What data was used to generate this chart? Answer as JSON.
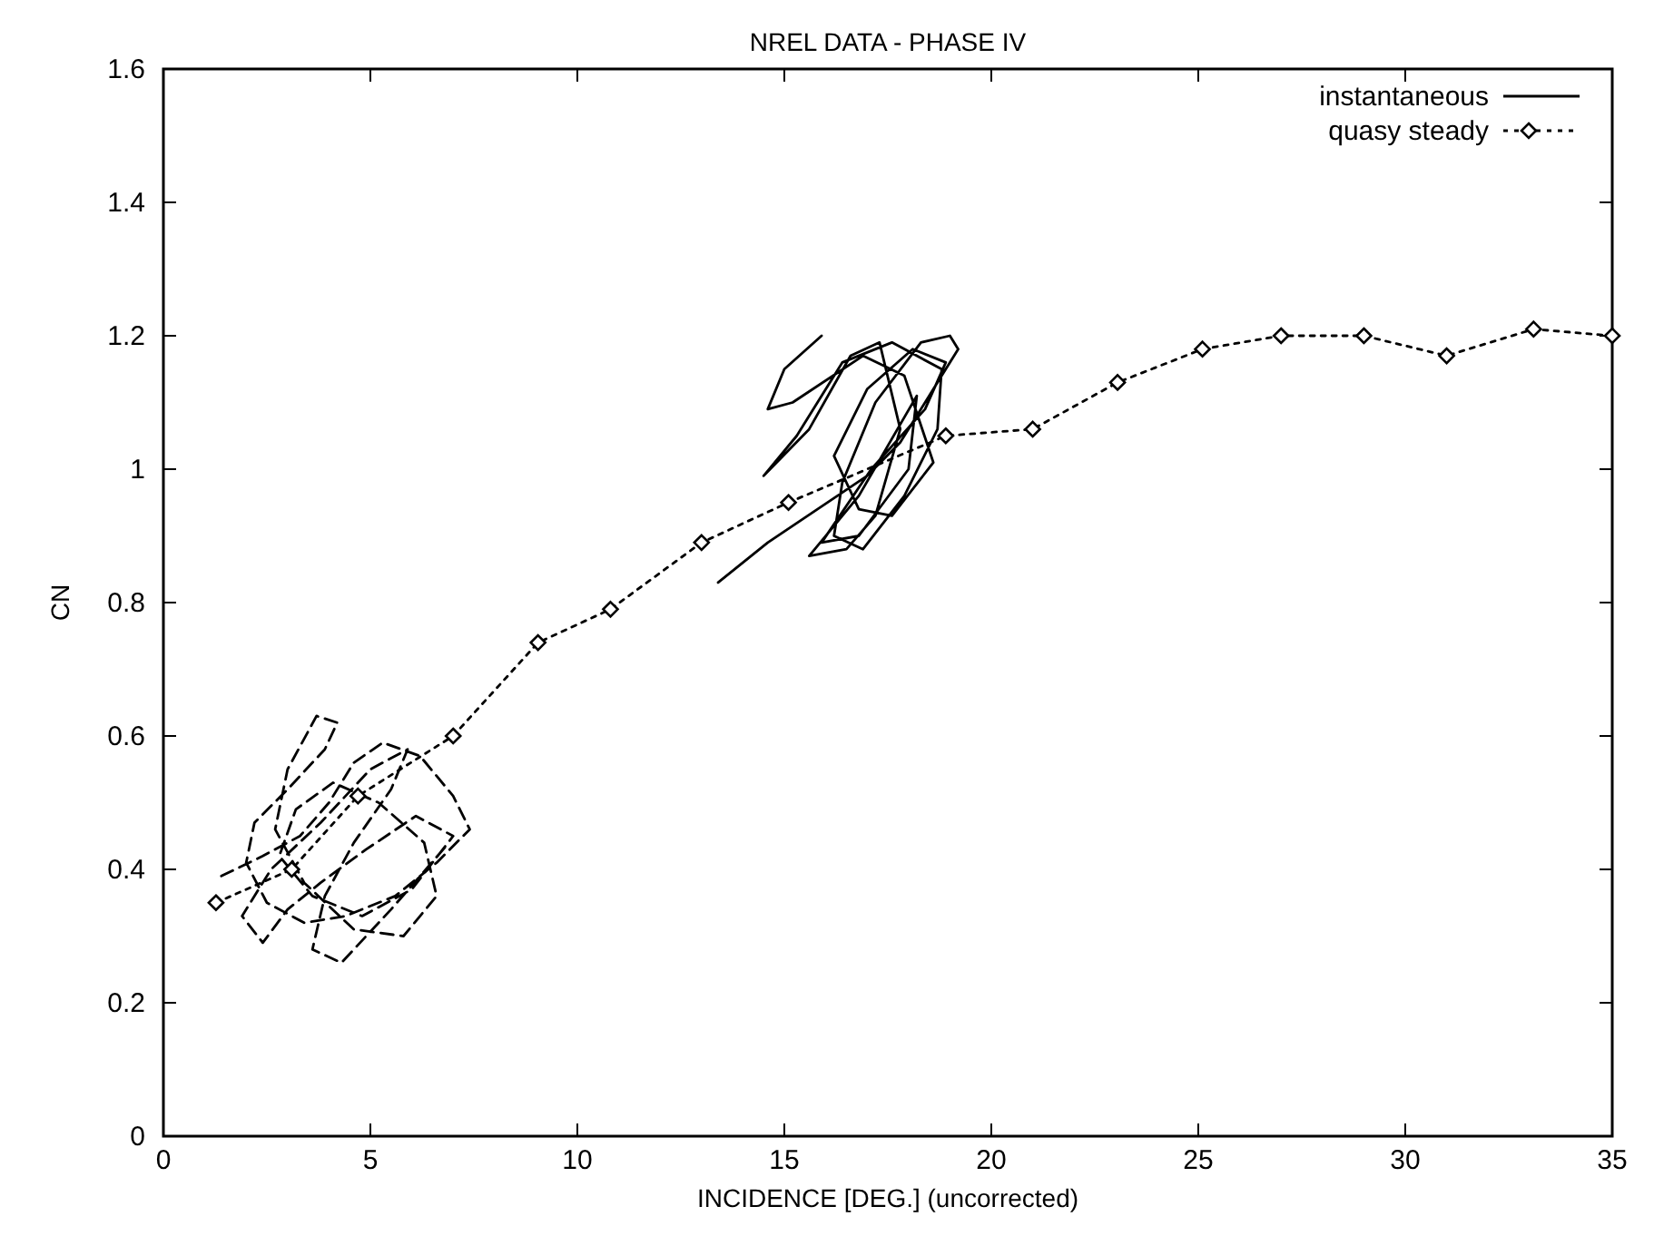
{
  "chart_data": {
    "type": "line",
    "title": "NREL DATA - PHASE IV",
    "xlabel": "INCIDENCE [DEG.] (uncorrected)",
    "ylabel": "CN",
    "xlim": [
      0,
      35
    ],
    "ylim": [
      0,
      1.6
    ],
    "xticks": [
      0,
      5,
      10,
      15,
      20,
      25,
      30,
      35
    ],
    "yticks": [
      0,
      0.2,
      0.4,
      0.6,
      0.8,
      1,
      1.2,
      1.4,
      1.6
    ],
    "grid": false,
    "legend": "top right",
    "series": [
      {
        "name": "instantaneous",
        "color": "#000000",
        "line_style": "solid",
        "marker": "none",
        "x": [
          13.4,
          14.6,
          15.8,
          17.0,
          17.8,
          18.6,
          19.2,
          19.0,
          18.3,
          17.2,
          16.4,
          16.2,
          16.9,
          17.9,
          18.7,
          18.8,
          17.6,
          16.4,
          15.3,
          14.5,
          15.6,
          16.6,
          17.3,
          17.8,
          17.2,
          16.5,
          15.6,
          16.8,
          18.2,
          18.0,
          16.8,
          15.9,
          17.1,
          18.4,
          18.9,
          18.1,
          17.0,
          16.2,
          16.8,
          17.6,
          18.6,
          17.9,
          16.9,
          15.2,
          14.6,
          15.0,
          15.9
        ],
        "values": [
          0.83,
          0.89,
          0.94,
          0.99,
          1.04,
          1.12,
          1.18,
          1.2,
          1.19,
          1.1,
          0.98,
          0.9,
          0.88,
          0.96,
          1.06,
          1.15,
          1.19,
          1.16,
          1.05,
          0.99,
          1.06,
          1.17,
          1.19,
          1.06,
          0.93,
          0.88,
          0.87,
          0.96,
          1.11,
          1.0,
          0.9,
          0.89,
          1.0,
          1.09,
          1.16,
          1.18,
          1.12,
          1.02,
          0.94,
          0.93,
          1.01,
          1.14,
          1.17,
          1.1,
          1.09,
          1.15,
          1.2
        ]
      },
      {
        "color": "#000000",
        "line_style": "dashed",
        "marker": "none",
        "x": [
          1.4,
          2.4,
          3.3,
          4.0,
          4.6,
          5.3,
          6.2,
          7.0,
          7.4,
          6.6,
          5.6,
          4.4,
          3.4,
          2.5,
          2.0,
          2.2,
          3.0,
          3.9,
          4.2,
          3.7,
          3.0,
          2.7,
          3.4,
          4.6,
          5.8,
          6.6,
          6.3,
          5.2,
          4.1,
          3.2,
          2.8,
          3.6,
          4.8,
          6.0,
          7.0,
          6.1,
          4.9,
          3.8,
          3.0,
          2.4,
          1.9,
          2.6,
          3.8,
          5.0,
          5.9,
          5.5,
          4.6,
          3.9,
          3.6,
          4.3,
          5.5,
          6.9
        ],
        "values": [
          0.39,
          0.42,
          0.45,
          0.5,
          0.56,
          0.59,
          0.57,
          0.51,
          0.46,
          0.41,
          0.36,
          0.33,
          0.32,
          0.35,
          0.41,
          0.47,
          0.52,
          0.58,
          0.62,
          0.63,
          0.55,
          0.46,
          0.38,
          0.31,
          0.3,
          0.36,
          0.44,
          0.5,
          0.53,
          0.49,
          0.42,
          0.36,
          0.33,
          0.37,
          0.45,
          0.48,
          0.43,
          0.38,
          0.34,
          0.29,
          0.33,
          0.4,
          0.47,
          0.55,
          0.58,
          0.52,
          0.44,
          0.36,
          0.28,
          0.26,
          0.34,
          0.44
        ]
      },
      {
        "name": "quasy steady",
        "color": "#000000",
        "line_style": "dotted",
        "marker": "diamond",
        "x": [
          1.27,
          3.1,
          4.7,
          7.0,
          9.05,
          10.8,
          13.0,
          15.1,
          18.9,
          21.0,
          23.05,
          25.1,
          27.0,
          29.0,
          31.0,
          33.1,
          35.0
        ],
        "values": [
          0.35,
          0.4,
          0.51,
          0.6,
          0.74,
          0.79,
          0.89,
          0.95,
          1.05,
          1.06,
          1.13,
          1.18,
          1.2,
          1.2,
          1.17,
          1.21,
          1.2
        ]
      }
    ]
  }
}
